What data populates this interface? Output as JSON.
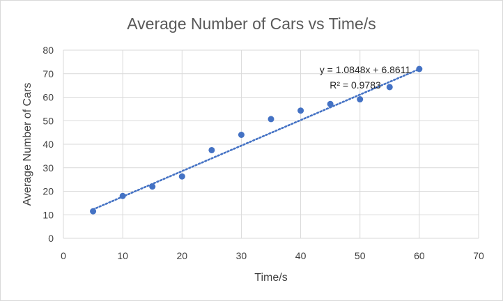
{
  "chart_data": {
    "type": "scatter",
    "title": "Average Number of Cars vs Time/s",
    "xlabel": "Time/s",
    "ylabel": "Average Number of Cars",
    "xlim": [
      0,
      70
    ],
    "ylim": [
      0,
      80
    ],
    "x_ticks": [
      0,
      10,
      20,
      30,
      40,
      50,
      60,
      70
    ],
    "y_ticks": [
      0,
      10,
      20,
      30,
      40,
      50,
      60,
      70,
      80
    ],
    "grid": true,
    "legend": "none",
    "series": [
      {
        "x": [
          5,
          10,
          15,
          20,
          25,
          30,
          35,
          40,
          45,
          50,
          55,
          60
        ],
        "y": [
          11.5,
          18,
          22,
          26.3,
          37.5,
          44,
          50.7,
          54.3,
          57.1,
          59.1,
          64.3,
          72
        ],
        "color": "#4472c4"
      }
    ],
    "trendline": {
      "type": "linear",
      "slope": 1.0848,
      "intercept": 6.8611,
      "x_range": [
        5,
        60
      ],
      "style": "dotted",
      "color": "#4472c4",
      "equation": "y = 1.0848x + 6.8611",
      "r_squared": "R² = 0.9783"
    }
  }
}
